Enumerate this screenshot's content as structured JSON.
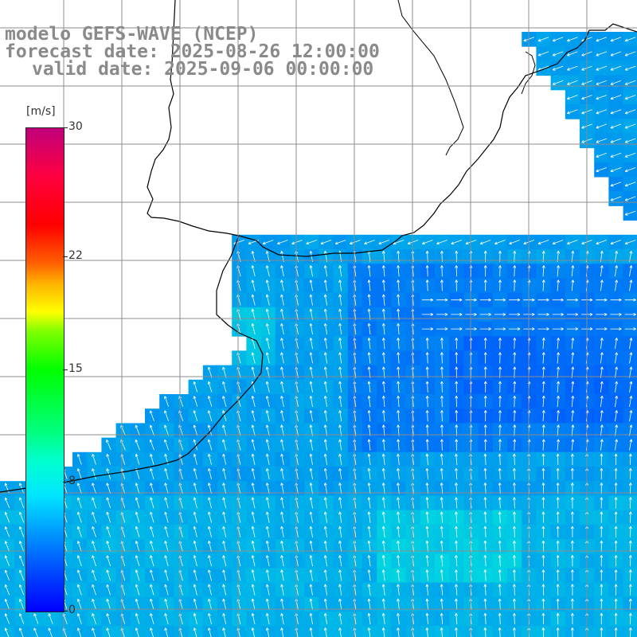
{
  "title": {
    "line1": "modelo GEFS-WAVE (NCEP)",
    "line2": "forecast date: 2025-08-26 12:00:00",
    "line3": "valid date: 2025-09-06 00:00:00"
  },
  "colorbar": {
    "unit": "[m/s]",
    "ticks": [
      {
        "label": "30",
        "value": 30
      },
      {
        "label": "22",
        "value": 22
      },
      {
        "label": "15",
        "value": 15
      },
      {
        "label": "8",
        "value": 8
      },
      {
        "label": "0",
        "value": 0
      }
    ],
    "range": [
      0,
      30
    ]
  },
  "map": {
    "region": "South America south-east coast / South Atlantic",
    "field": "wind speed with direction arrows",
    "land_color": "#ffffff",
    "coast_color": "#000000",
    "grid_color": "#8c8c8c",
    "arrow_color": "#ffffff"
  }
}
